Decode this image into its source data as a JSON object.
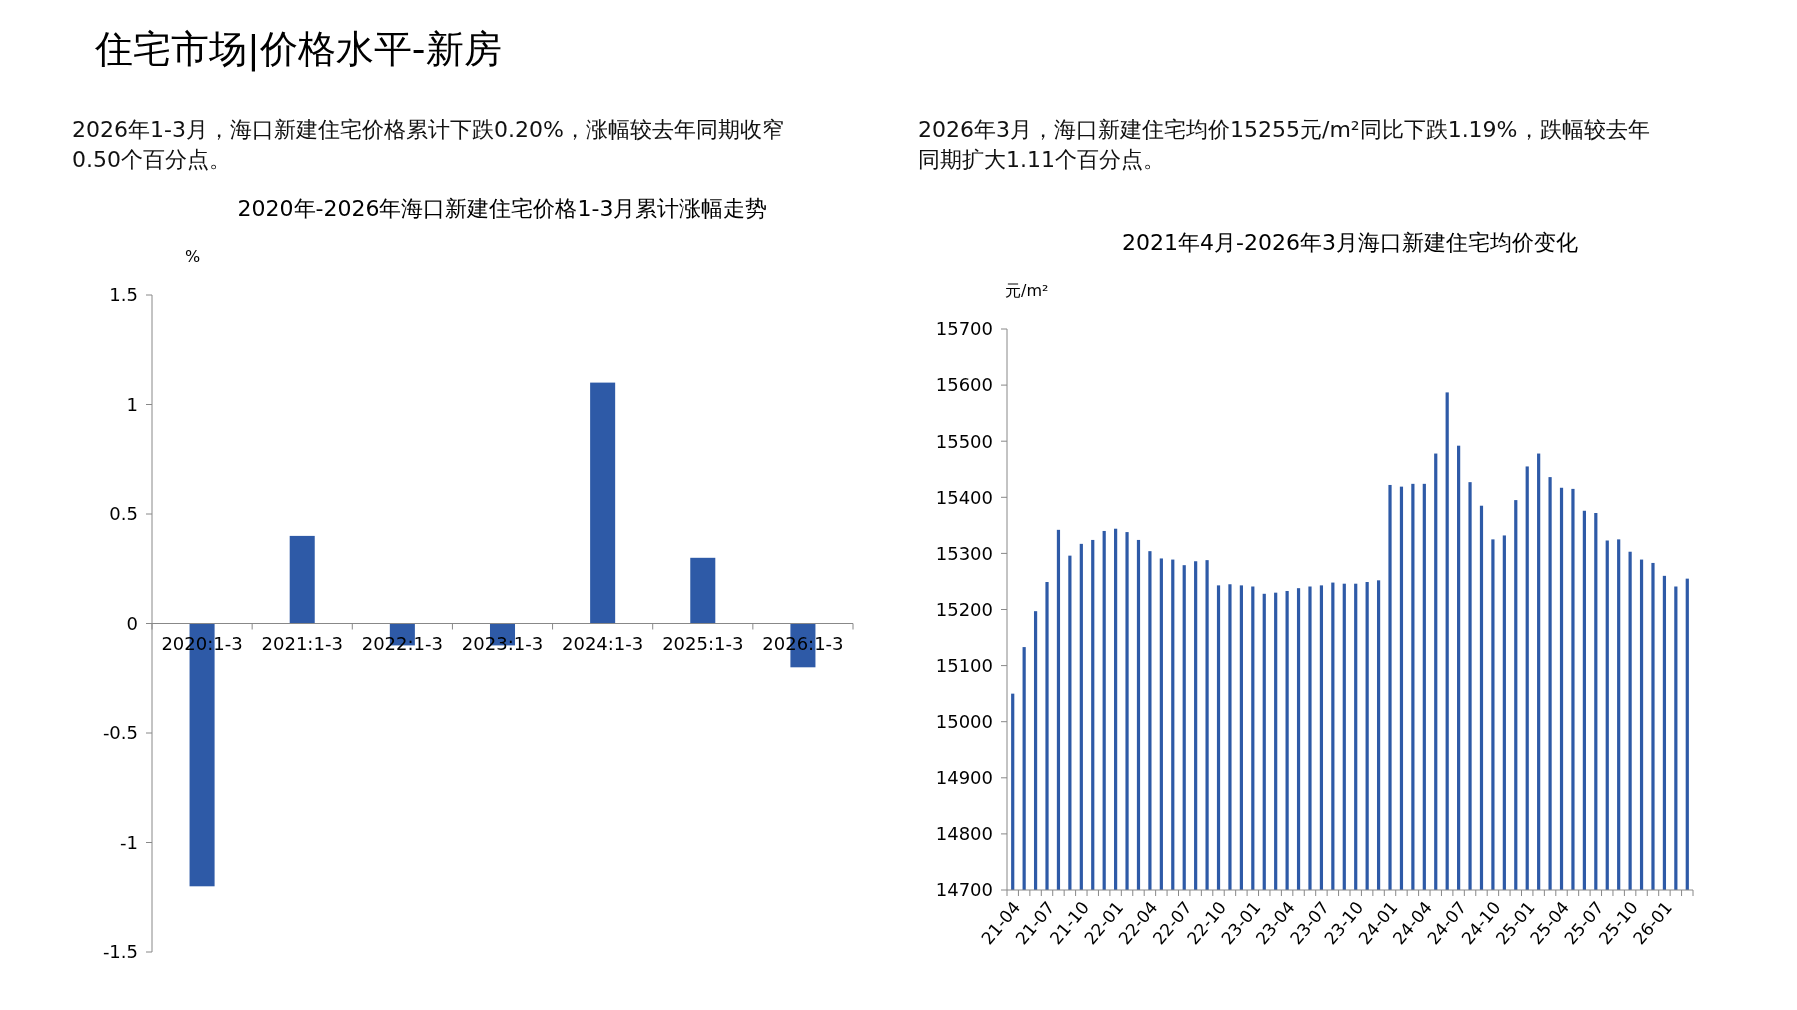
{
  "chart_data": [
    {
      "type": "bar",
      "title": "2020年-2026年海口新建住宅价格1-3月累计涨幅走势",
      "ylabel": "%",
      "annotations": [
        "住宅市场|价格水平-新房",
        "2026年1-3月，海口新建住宅价格累计下跌0.20%，涨幅较去年同期收窄0.50个百分点。"
      ],
      "categories": [
        "2020:1-3",
        "2021:1-3",
        "2022:1-3",
        "2023:1-3",
        "2024:1-3",
        "2025:1-3",
        "2026:1-3"
      ],
      "values": [
        -1.2,
        0.4,
        -0.1,
        -0.1,
        1.1,
        0.3,
        -0.2
      ],
      "color": "#2e5aa7",
      "ylim": [
        -1.5,
        1.5
      ],
      "yticks": [
        -1.5,
        -1,
        -0.5,
        0,
        0.5,
        1,
        1.5
      ]
    },
    {
      "type": "bar",
      "title": "2021年4月-2026年3月海口新建住宅均价变化",
      "ylabel": "元/m²",
      "annotations": [
        "2026年3月，海口新建住宅均价15255元/m²同比下跌1.19%，跌幅较去年同期扩大1.11个百分点。"
      ],
      "categories": [
        "21-04",
        null,
        null,
        "21-07",
        null,
        null,
        "21-10",
        null,
        null,
        "22-01",
        null,
        null,
        "22-04",
        null,
        null,
        "22-07",
        null,
        null,
        "22-10",
        null,
        null,
        "23-01",
        null,
        null,
        "23-04",
        null,
        null,
        "23-07",
        null,
        null,
        "23-10",
        null,
        null,
        "24-01",
        null,
        null,
        "24-04",
        null,
        null,
        "24-07",
        null,
        null,
        "24-10",
        null,
        null,
        "25-01",
        null,
        null,
        "25-04",
        null,
        null,
        "25-07",
        null,
        null,
        "25-10",
        null,
        null,
        "26-01",
        null,
        null
      ],
      "values": [
        15050,
        15133,
        15197,
        15249,
        15342,
        15296,
        15317,
        15324,
        15340,
        15344,
        15338,
        15324,
        15304,
        15291,
        15289,
        15279,
        15286,
        15288,
        15243,
        15245,
        15243,
        15241,
        15228,
        15230,
        15233,
        15238,
        15241,
        15243,
        15248,
        15246,
        15246,
        15249,
        15252,
        15422,
        15419,
        15424,
        15424,
        15478,
        15587,
        15492,
        15427,
        15385,
        15325,
        15332,
        15395,
        15455,
        15478,
        15436,
        15417,
        15415,
        15376,
        15372,
        15323,
        15325,
        15303,
        15289,
        15283,
        15260,
        15241,
        15255
      ],
      "color": "#2e5aa7",
      "ylim": [
        14700,
        15700
      ],
      "yticks": [
        14700,
        14800,
        14900,
        15000,
        15100,
        15200,
        15300,
        15400,
        15500,
        15600,
        15700
      ]
    }
  ]
}
